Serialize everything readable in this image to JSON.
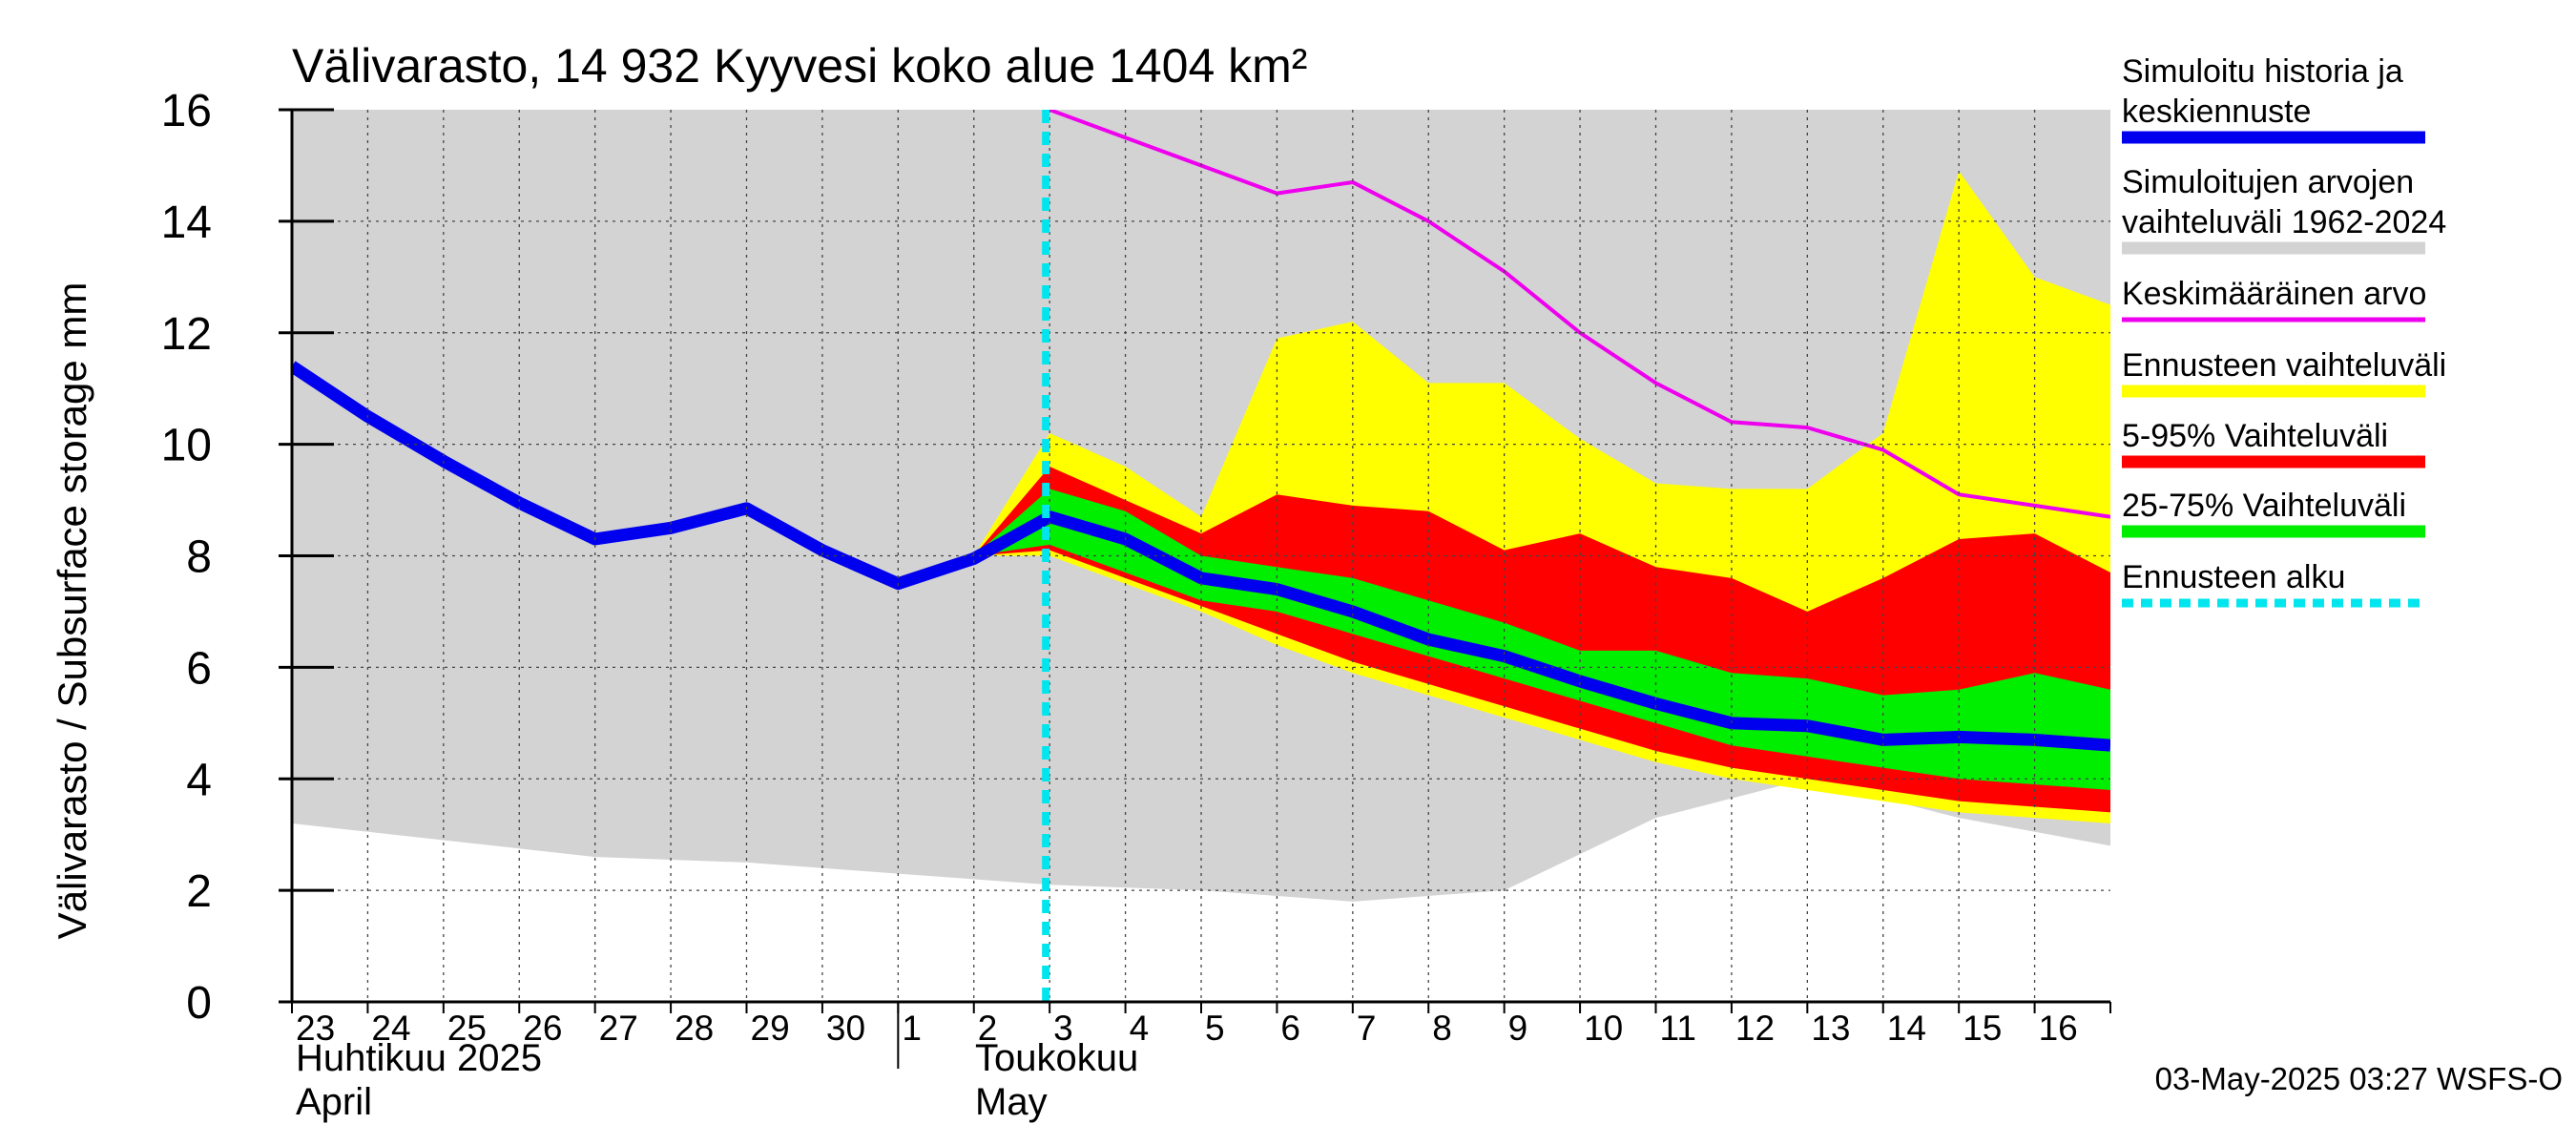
{
  "chart_data": {
    "type": "area",
    "title": "Välivarasto, 14 932 Kyyvesi koko alue 1404 km²",
    "ylabel": "Välivarasto / Subsurface storage  mm",
    "ylim": [
      0,
      16
    ],
    "yticks": [
      0,
      2,
      4,
      6,
      8,
      10,
      12,
      14,
      16
    ],
    "grid": true,
    "legend_position": "right",
    "x_day_labels": [
      "23",
      "24",
      "25",
      "26",
      "27",
      "28",
      "29",
      "30",
      "1",
      "2",
      "3",
      "4",
      "5",
      "6",
      "7",
      "8",
      "9",
      "10",
      "11",
      "12",
      "13",
      "14",
      "15",
      "16"
    ],
    "month_labels": [
      {
        "fi": "Huhtikuu  2025",
        "en": "April"
      },
      {
        "fi": "Toukokuu",
        "en": "May"
      }
    ],
    "forecast_start": "2025-05-03",
    "footer": "03-May-2025 03:27 WSFS-O",
    "legend": [
      {
        "label": "Simuloitu historia ja keskiennuste",
        "color": "#0000ee"
      },
      {
        "label": "Simuloitujen arvojen vaihteluväli 1962-2024",
        "color": "#d3d3d3"
      },
      {
        "label": "Keskimääräinen arvo",
        "color": "#ee00ee"
      },
      {
        "label": "Ennusteen vaihteluväli",
        "color": "#ffff00"
      },
      {
        "label": "5-95% Vaihteluväli",
        "color": "#ff0000"
      },
      {
        "label": "25-75% Vaihteluväli",
        "color": "#00ee00"
      },
      {
        "label": "Ennusteen alku",
        "color": "#00e5ee"
      }
    ],
    "history_range": {
      "x": [
        0,
        2,
        4,
        6,
        8,
        10,
        12,
        14,
        16,
        18,
        20,
        22,
        24
      ],
      "upper": [
        16,
        16,
        16,
        16,
        16,
        16,
        16,
        16,
        16,
        16,
        16,
        16,
        16
      ],
      "lower": [
        3.2,
        2.9,
        2.6,
        2.5,
        2.3,
        2.1,
        2.0,
        1.8,
        2.0,
        3.3,
        4.0,
        3.3,
        2.8
      ]
    },
    "mean_value": {
      "x": [
        10,
        11,
        12,
        13,
        14,
        15,
        16,
        17,
        18,
        19,
        20,
        21,
        22,
        23,
        24
      ],
      "values": [
        16.0,
        15.5,
        15.0,
        14.5,
        14.7,
        14.0,
        13.1,
        12.0,
        11.1,
        10.4,
        10.3,
        9.9,
        9.1,
        8.9,
        8.7
      ]
    },
    "forecast_bands": {
      "x": [
        9,
        10,
        11,
        12,
        13,
        14,
        15,
        16,
        17,
        18,
        19,
        20,
        21,
        22,
        23,
        24
      ],
      "full_max": [
        8.0,
        10.2,
        9.6,
        8.7,
        11.9,
        12.2,
        11.1,
        11.1,
        10.1,
        9.3,
        9.2,
        9.2,
        10.2,
        14.9,
        13.0,
        12.5
      ],
      "full_min": [
        8.0,
        8.0,
        7.5,
        7.0,
        6.4,
        5.9,
        5.5,
        5.1,
        4.7,
        4.3,
        4.0,
        3.8,
        3.6,
        3.4,
        3.3,
        3.2
      ],
      "p95": [
        8.0,
        9.6,
        9.0,
        8.4,
        9.1,
        8.9,
        8.8,
        8.1,
        8.4,
        7.8,
        7.6,
        7.0,
        7.6,
        8.3,
        8.4,
        7.7
      ],
      "p5": [
        8.0,
        8.1,
        7.6,
        7.1,
        6.6,
        6.1,
        5.7,
        5.3,
        4.9,
        4.5,
        4.2,
        4.0,
        3.8,
        3.6,
        3.5,
        3.4
      ],
      "p75": [
        8.0,
        9.2,
        8.8,
        8.0,
        7.8,
        7.6,
        7.2,
        6.8,
        6.3,
        6.3,
        5.9,
        5.8,
        5.5,
        5.6,
        5.9,
        5.6
      ],
      "p25": [
        8.0,
        8.2,
        7.7,
        7.2,
        7.0,
        6.6,
        6.2,
        5.8,
        5.4,
        5.0,
        4.6,
        4.4,
        4.2,
        4.0,
        3.9,
        3.8
      ]
    },
    "simulated_median": {
      "x": [
        0,
        1,
        2,
        3,
        4,
        5,
        6,
        7,
        8,
        9,
        10,
        11,
        12,
        13,
        14,
        15,
        16,
        17,
        18,
        19,
        20,
        21,
        22,
        23,
        24
      ],
      "values": [
        11.4,
        10.5,
        9.7,
        8.95,
        8.3,
        8.5,
        8.85,
        8.1,
        7.5,
        7.95,
        8.7,
        8.3,
        7.6,
        7.4,
        7.0,
        6.5,
        6.2,
        5.75,
        5.35,
        5.0,
        4.95,
        4.7,
        4.75,
        4.7,
        4.6
      ]
    }
  }
}
